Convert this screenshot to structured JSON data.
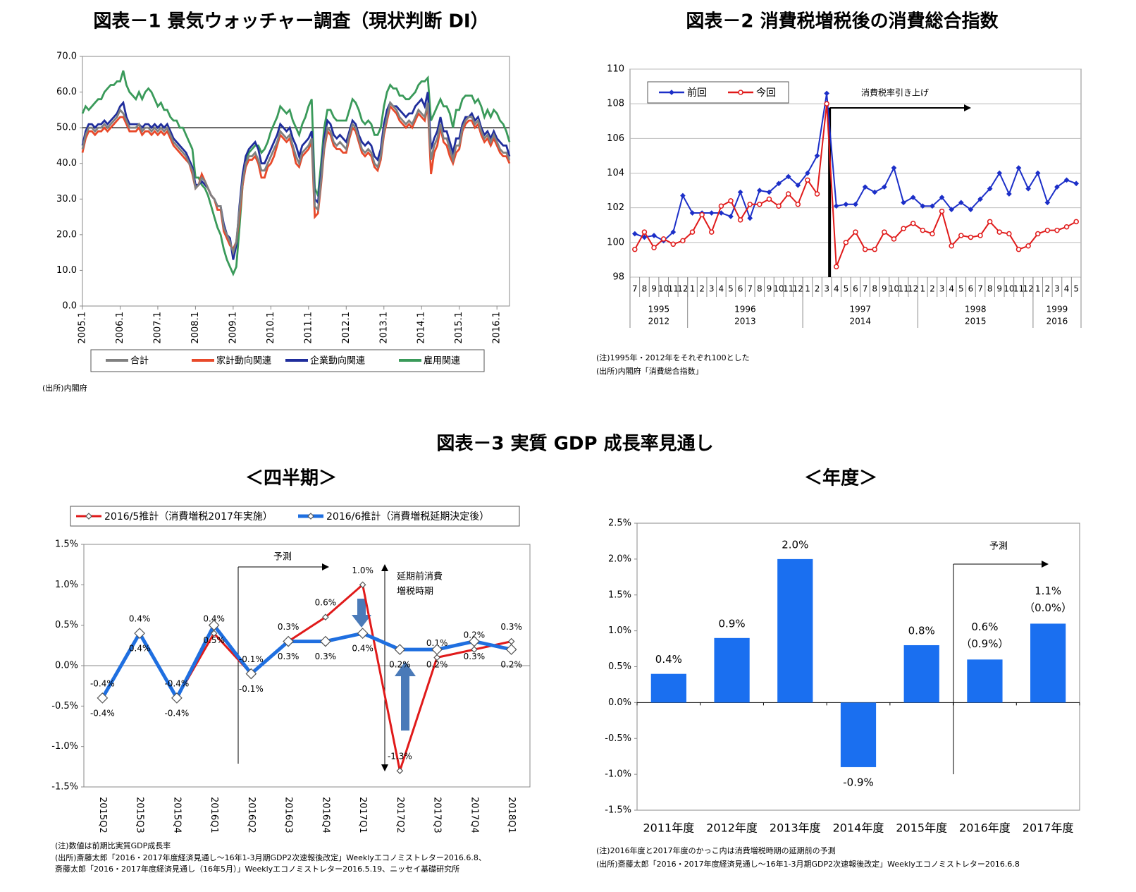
{
  "chart_data": [
    {
      "type": "line",
      "title": "図表－1 景気ウォッチャー調査（現状判断 DI）",
      "source": "(出所)内閣府",
      "categories": [
        "2005.1",
        null,
        null,
        null,
        null,
        null,
        null,
        null,
        null,
        null,
        null,
        null,
        "2006.1",
        null,
        null,
        null,
        null,
        null,
        null,
        null,
        null,
        null,
        null,
        null,
        "2007.1",
        null,
        null,
        null,
        null,
        null,
        null,
        null,
        null,
        null,
        null,
        null,
        "2008.1",
        null,
        null,
        null,
        null,
        null,
        null,
        null,
        null,
        null,
        null,
        null,
        "2009.1",
        null,
        null,
        null,
        null,
        null,
        null,
        null,
        null,
        null,
        null,
        null,
        "2010.1",
        null,
        null,
        null,
        null,
        null,
        null,
        null,
        null,
        null,
        null,
        null,
        "2011.1",
        null,
        null,
        null,
        null,
        null,
        null,
        null,
        null,
        null,
        null,
        null,
        "2012.1",
        null,
        null,
        null,
        null,
        null,
        null,
        null,
        null,
        null,
        null,
        null,
        "2013.1",
        null,
        null,
        null,
        null,
        null,
        null,
        null,
        null,
        null,
        null,
        null,
        "2014.1",
        null,
        null,
        null,
        null,
        null,
        null,
        null,
        null,
        null,
        null,
        null,
        "2015.1",
        null,
        null,
        null,
        null,
        null,
        null,
        null,
        null,
        null,
        null,
        null,
        "2016.1",
        null,
        null,
        null,
        null
      ],
      "series": [
        {
          "name": "合計",
          "color": "#808080",
          "values": [
            44,
            48,
            50,
            50,
            49,
            50,
            50,
            51,
            50,
            51,
            52,
            53,
            55,
            54,
            52,
            50,
            50,
            50,
            51,
            49,
            50,
            50,
            49,
            50,
            49,
            50,
            49,
            50,
            48,
            46,
            45,
            44,
            43,
            42,
            40,
            38,
            33,
            34,
            36,
            35,
            33,
            31,
            30,
            28,
            28,
            22,
            20,
            18,
            15,
            18,
            27,
            35,
            40,
            42,
            42,
            43,
            41,
            38,
            38,
            40,
            42,
            44,
            46,
            49,
            48,
            47,
            48,
            45,
            42,
            40,
            43,
            44,
            45,
            47,
            28,
            27,
            35,
            45,
            50,
            49,
            46,
            45,
            46,
            45,
            44,
            48,
            51,
            50,
            47,
            44,
            43,
            44,
            43,
            40,
            39,
            42,
            49,
            53,
            57,
            56,
            55,
            53,
            52,
            51,
            52,
            51,
            53,
            55,
            54,
            53,
            57,
            41,
            45,
            47,
            51,
            47,
            47,
            44,
            41,
            45,
            45,
            50,
            52,
            53,
            53,
            51,
            52,
            49,
            47,
            48,
            46,
            48,
            46,
            44,
            43,
            43,
            41
          ]
        },
        {
          "name": "家計動向関連",
          "color": "#e8492a",
          "values": [
            43,
            47,
            49,
            49,
            48,
            49,
            49,
            50,
            49,
            50,
            51,
            52,
            53,
            53,
            51,
            49,
            49,
            49,
            50,
            48,
            49,
            49,
            48,
            49,
            48,
            49,
            48,
            49,
            47,
            45,
            44,
            43,
            42,
            41,
            40,
            37,
            33,
            34,
            37,
            35,
            33,
            31,
            30,
            27,
            27,
            21,
            19,
            17,
            16,
            18,
            25,
            34,
            39,
            41,
            41,
            42,
            40,
            36,
            36,
            39,
            40,
            42,
            45,
            48,
            47,
            46,
            47,
            44,
            40,
            39,
            42,
            43,
            44,
            46,
            25,
            26,
            34,
            44,
            49,
            48,
            45,
            44,
            44,
            43,
            43,
            47,
            50,
            49,
            46,
            43,
            42,
            43,
            42,
            39,
            38,
            41,
            48,
            52,
            56,
            55,
            54,
            52,
            51,
            50,
            51,
            50,
            52,
            54,
            53,
            52,
            56,
            37,
            43,
            45,
            50,
            46,
            45,
            42,
            40,
            43,
            44,
            49,
            51,
            52,
            52,
            50,
            51,
            48,
            46,
            47,
            45,
            47,
            45,
            43,
            42,
            42,
            40
          ]
        },
        {
          "name": "企業動向関連",
          "color": "#1f2d9c",
          "values": [
            45,
            49,
            51,
            51,
            50,
            51,
            51,
            52,
            51,
            52,
            53,
            54,
            56,
            57,
            53,
            51,
            51,
            51,
            51,
            50,
            51,
            51,
            50,
            51,
            50,
            51,
            50,
            51,
            49,
            47,
            46,
            45,
            44,
            43,
            41,
            39,
            34,
            34,
            35,
            34,
            33,
            31,
            30,
            28,
            28,
            23,
            20,
            19,
            13,
            17,
            28,
            37,
            42,
            44,
            45,
            46,
            44,
            40,
            40,
            42,
            44,
            46,
            48,
            51,
            50,
            49,
            50,
            47,
            45,
            42,
            45,
            46,
            47,
            49,
            30,
            29,
            37,
            47,
            52,
            51,
            48,
            47,
            48,
            47,
            46,
            49,
            52,
            51,
            48,
            46,
            45,
            46,
            45,
            42,
            41,
            44,
            51,
            55,
            57,
            56,
            56,
            55,
            54,
            53,
            54,
            54,
            56,
            57,
            58,
            56,
            60,
            44,
            47,
            49,
            53,
            49,
            49,
            46,
            43,
            47,
            47,
            51,
            53,
            53,
            54,
            52,
            53,
            50,
            48,
            49,
            47,
            49,
            47,
            46,
            45,
            45,
            42
          ]
        },
        {
          "name": "雇用関連",
          "color": "#3a9a5a",
          "values": [
            54,
            56,
            55,
            56,
            57,
            58,
            58,
            60,
            61,
            62,
            62,
            63,
            63,
            66,
            62,
            60,
            59,
            58,
            60,
            58,
            60,
            61,
            60,
            58,
            56,
            57,
            55,
            55,
            53,
            52,
            52,
            50,
            50,
            48,
            46,
            44,
            36,
            36,
            34,
            33,
            31,
            28,
            25,
            22,
            20,
            16,
            13,
            11,
            9,
            11,
            22,
            34,
            40,
            43,
            44,
            45,
            45,
            43,
            44,
            46,
            49,
            51,
            53,
            56,
            55,
            54,
            55,
            52,
            50,
            48,
            51,
            53,
            56,
            58,
            33,
            31,
            40,
            50,
            55,
            55,
            53,
            52,
            52,
            52,
            52,
            55,
            58,
            57,
            55,
            52,
            51,
            52,
            51,
            48,
            48,
            50,
            56,
            60,
            62,
            61,
            61,
            59,
            59,
            58,
            58,
            59,
            60,
            62,
            63,
            63,
            64,
            52,
            54,
            56,
            58,
            56,
            56,
            54,
            50,
            55,
            55,
            58,
            59,
            59,
            59,
            57,
            58,
            56,
            53,
            55,
            53,
            55,
            54,
            52,
            51,
            49,
            46
          ]
        }
      ],
      "ylim": [
        0,
        70
      ],
      "yticks": [
        {
          "value": 0,
          "label": "0.0"
        },
        {
          "value": 10,
          "label": "10.0"
        },
        {
          "value": 20,
          "label": "20.0"
        },
        {
          "value": 30,
          "label": "30.0"
        },
        {
          "value": 40,
          "label": "40.0"
        },
        {
          "value": 50,
          "label": "50.0"
        },
        {
          "value": 60,
          "label": "60.0"
        },
        {
          "value": 70,
          "label": "70.0"
        }
      ],
      "reference_line": 50,
      "legend": "bottom",
      "grid": false
    },
    {
      "type": "line",
      "title": "図表－2 消費税増税後の消費総合指数",
      "annotation": "消費税率引き上げ",
      "notes": [
        "(注)1995年・2012年をそれぞれ100とした",
        "(出所)内閣府「消費総合指数」"
      ],
      "categories": [
        "7",
        "8",
        "9",
        "10",
        "11",
        "12",
        "1",
        "2",
        "3",
        "4",
        "5",
        "6",
        "7",
        "8",
        "9",
        "10",
        "11",
        "12",
        "1",
        "2",
        "3",
        "4",
        "5",
        "6",
        "7",
        "8",
        "9",
        "10",
        "11",
        "12",
        "1",
        "2",
        "3",
        "4",
        "5",
        "6",
        "7",
        "8",
        "9",
        "10",
        "11",
        "12",
        "1",
        "2",
        "3",
        "4",
        "5"
      ],
      "year_groups": [
        [
          "1995",
          "2012"
        ],
        [
          "1996",
          "2013"
        ],
        [
          "1997",
          "2014"
        ],
        [
          "1998",
          "2015"
        ],
        [
          "1999",
          "2016"
        ]
      ],
      "series": [
        {
          "name": "前回",
          "color": "#1c2fc8",
          "marker": "diamond",
          "values": [
            100.5,
            100.3,
            100.4,
            100.1,
            100.6,
            102.7,
            101.7,
            101.7,
            101.7,
            101.7,
            101.5,
            102.9,
            101.4,
            103.0,
            102.9,
            103.4,
            103.8,
            103.3,
            104.0,
            105.0,
            108.6,
            102.1,
            102.2,
            102.2,
            103.2,
            102.9,
            103.2,
            104.3,
            102.3,
            102.6,
            102.1,
            102.1,
            102.6,
            101.9,
            102.3,
            101.9,
            102.5,
            103.1,
            104.0,
            102.8,
            104.3,
            103.1,
            104.0,
            102.3,
            103.2,
            103.6,
            103.4
          ]
        },
        {
          "name": "今回",
          "color": "#e01a1a",
          "marker": "circle",
          "values": [
            99.6,
            100.6,
            99.7,
            100.2,
            99.9,
            100.1,
            100.6,
            101.6,
            100.6,
            102.1,
            102.4,
            101.3,
            102.2,
            102.2,
            102.5,
            102.1,
            102.8,
            102.2,
            103.6,
            102.8,
            108.0,
            98.6,
            100.0,
            100.6,
            99.6,
            99.6,
            100.6,
            100.2,
            100.8,
            101.1,
            100.7,
            100.5,
            101.8,
            99.8,
            100.4,
            100.3,
            100.4,
            101.2,
            100.6,
            100.5,
            99.6,
            99.8,
            100.5,
            100.7,
            100.7,
            100.9,
            101.2
          ]
        }
      ],
      "ylim": [
        98,
        110
      ],
      "yticks": [
        98,
        100,
        102,
        104,
        106,
        108,
        110
      ],
      "grid": true,
      "legend": "top-left"
    },
    {
      "type": "line",
      "section_title": "図表－3 実質 GDP 成長率見通し",
      "subtitle": "＜四半期＞",
      "forecast_label": "予測",
      "annotation_lines": [
        "延期前消費",
        "増税時期"
      ],
      "notes": [
        "(注)数値は前期比実質GDP成長率",
        "(出所)斎藤太郎「2016・2017年度経済見通し～16年1-3月期GDP2次速報後改定」Weeklyエコノミストレター2016.6.8、",
        "斎藤太郎「2016・2017年度経済見通し（16年5月）」Weeklyエコノミストレター2016.5.19、ニッセイ基礎研究所"
      ],
      "categories": [
        "2015Q2",
        "2015Q3",
        "2015Q4",
        "2016Q1",
        "2016Q2",
        "2016Q3",
        "2016Q4",
        "2017Q1",
        "2017Q2",
        "2017Q3",
        "2017Q4",
        "2018Q1"
      ],
      "series": [
        {
          "name": "2016/5推計（消費増税2017年実施）",
          "color": "#e01a1a",
          "values": [
            -0.4,
            0.4,
            -0.4,
            0.4,
            -0.1,
            0.3,
            0.6,
            1.0,
            -1.3,
            0.1,
            0.2,
            0.3
          ],
          "value_labels": [
            "-0.4%",
            "0.4%",
            "-0.4%",
            "0.4%",
            "-0.1%",
            "0.3%",
            "0.6%",
            "1.0%",
            "-1.3%",
            "0.1%",
            "0.2%",
            "0.3%"
          ]
        },
        {
          "name": "2016/6推計（消費増税延期決定後）",
          "color": "#1f6fe0",
          "values": [
            -0.4,
            0.4,
            -0.4,
            0.5,
            -0.1,
            0.3,
            0.3,
            0.4,
            0.2,
            0.2,
            0.3,
            0.2
          ],
          "value_labels": [
            "-0.4%",
            "0.4%",
            "-0.4%",
            "0.5%",
            "-0.1%",
            "0.3%",
            "0.3%",
            "0.4%",
            "0.2%",
            "0.2%",
            "0.3%",
            "0.2%"
          ]
        }
      ],
      "ylim": [
        -1.5,
        1.5
      ],
      "yticks": [
        {
          "value": -1.5,
          "label": "-1.5%"
        },
        {
          "value": -1,
          "label": "-1.0%"
        },
        {
          "value": -0.5,
          "label": "-0.5%"
        },
        {
          "value": 0,
          "label": "0.0%"
        },
        {
          "value": 0.5,
          "label": "0.5%"
        },
        {
          "value": 1,
          "label": "1.0%"
        },
        {
          "value": 1.5,
          "label": "1.5%"
        }
      ],
      "legend": "top"
    },
    {
      "type": "bar",
      "subtitle": "＜年度＞",
      "forecast_label": "予測",
      "notes": [
        "(注)2016年度と2017年度のかっこ内は消費増税時期の延期前の予測",
        "(出所)斎藤太郎「2016・2017年度経済見通し～16年1-3月期GDP2次速報後改定」Weeklyエコノミストレター2016.6.8"
      ],
      "categories": [
        "2011年度",
        "2012年度",
        "2013年度",
        "2014年度",
        "2015年度",
        "2016年度",
        "2017年度"
      ],
      "values": [
        0.4,
        0.9,
        2.0,
        -0.9,
        0.8,
        0.6,
        1.1
      ],
      "value_labels": [
        "0.4%",
        "0.9%",
        "2.0%",
        "-0.9%",
        "0.8%",
        "0.6%",
        "1.1%"
      ],
      "paren_labels": [
        null,
        null,
        null,
        null,
        null,
        "（0.9%）",
        "（0.0%）"
      ],
      "color": "#1a6ff0",
      "ylim": [
        -1.5,
        2.5
      ],
      "yticks": [
        {
          "value": -1.5,
          "label": "-1.5%"
        },
        {
          "value": -1,
          "label": "-1.0%"
        },
        {
          "value": -0.5,
          "label": "-0.5%"
        },
        {
          "value": 0,
          "label": "0.0%"
        },
        {
          "value": 0.5,
          "label": "0.5%"
        },
        {
          "value": 1,
          "label": "1.0%"
        },
        {
          "value": 1.5,
          "label": "1.5%"
        },
        {
          "value": 2,
          "label": "2.0%"
        },
        {
          "value": 2.5,
          "label": "2.5%"
        }
      ]
    }
  ]
}
